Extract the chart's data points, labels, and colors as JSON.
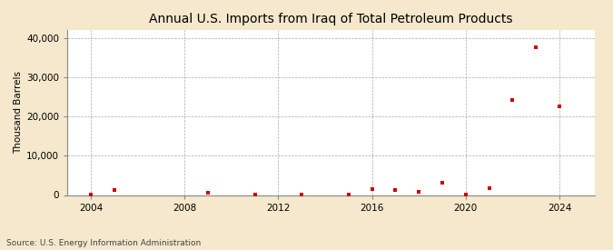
{
  "title": "Annual U.S. Imports from Iraq of Total Petroleum Products",
  "ylabel": "Thousand Barrels",
  "source": "Source: U.S. Energy Information Administration",
  "background_color": "#f5e8cc",
  "plot_background": "#ffffff",
  "marker_color": "#cc0000",
  "years": [
    2004,
    2005,
    2009,
    2011,
    2013,
    2015,
    2016,
    2017,
    2018,
    2019,
    2020,
    2021,
    2022,
    2023,
    2024
  ],
  "values": [
    50,
    1300,
    600,
    200,
    100,
    100,
    1400,
    1200,
    900,
    3200,
    100,
    1800,
    24200,
    37500,
    22500
  ],
  "xlim": [
    2003.0,
    2025.5
  ],
  "ylim": [
    0,
    42000
  ],
  "xticks": [
    2004,
    2008,
    2012,
    2016,
    2020,
    2024
  ],
  "yticks": [
    0,
    10000,
    20000,
    30000,
    40000
  ],
  "ytick_labels": [
    "0",
    "10,000",
    "20,000",
    "30,000",
    "40,000"
  ],
  "grid_color": "#aaaaaa",
  "title_fontsize": 10,
  "label_fontsize": 7.5,
  "tick_fontsize": 7.5,
  "source_fontsize": 6.5
}
